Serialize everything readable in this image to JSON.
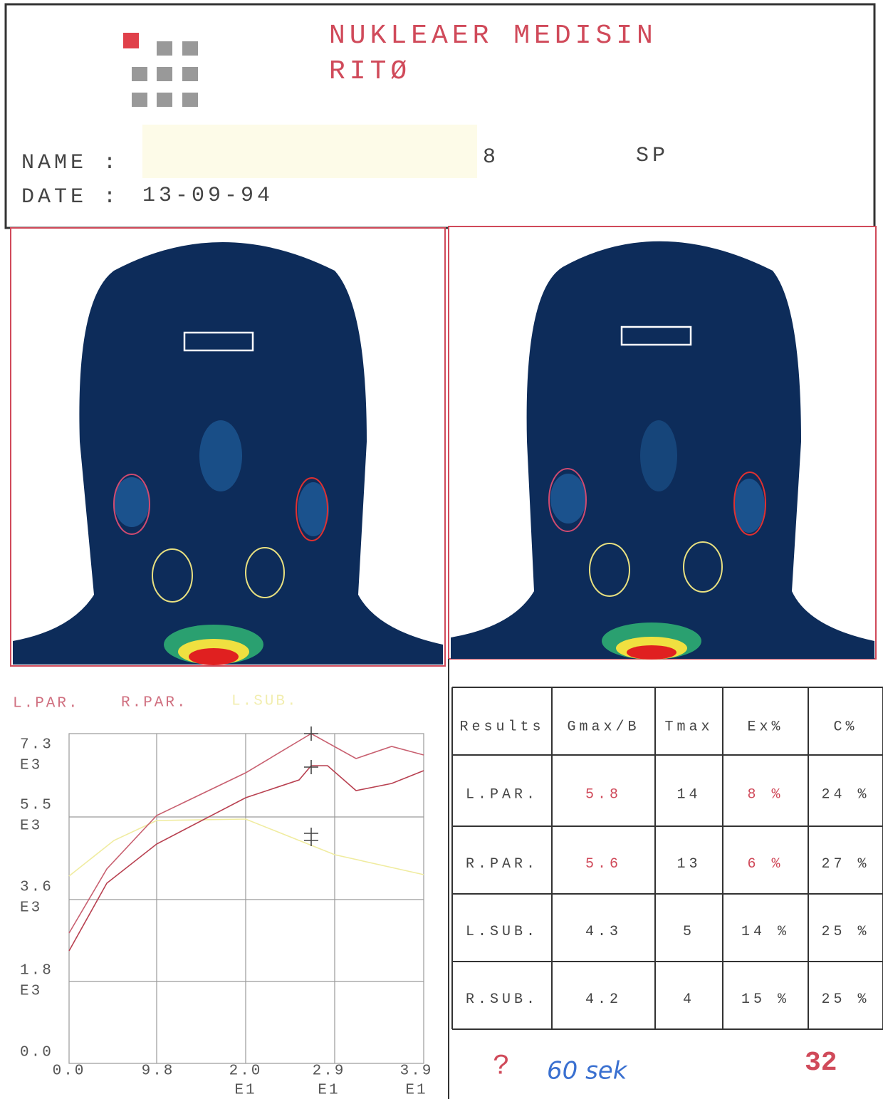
{
  "header": {
    "title": "NUKLEAER MEDISIN",
    "subtitle": "RITØ",
    "name_label": "NAME :",
    "code": "8",
    "initials": "SP",
    "date_label": "DATE :",
    "date": "13-09-94"
  },
  "plot": {
    "legend": [
      "L.PAR.",
      "R.PAR.",
      "L.SUB."
    ],
    "yticks": [
      {
        "label": "7.3",
        "unit": "E3"
      },
      {
        "label": "5.5",
        "unit": "E3"
      },
      {
        "label": "3.6",
        "unit": "E3"
      },
      {
        "label": "1.8",
        "unit": "E3"
      },
      {
        "label": "0.0"
      }
    ],
    "xticks": [
      {
        "label": "0.0"
      },
      {
        "label": "9.8"
      },
      {
        "label": "2.0",
        "unit": "E1"
      },
      {
        "label": "2.9",
        "unit": "E1"
      },
      {
        "label": "3.9",
        "unit": "E1"
      }
    ]
  },
  "table": {
    "header": [
      "Results",
      "Gmax/B",
      "Tmax",
      "Ex%",
      "C%"
    ],
    "rows": [
      [
        "L.PAR.",
        "5.8",
        "14",
        "8 %",
        "24 %"
      ],
      [
        "R.PAR.",
        "5.6",
        "13",
        "6 %",
        "27 %"
      ],
      [
        "L.SUB.",
        "4.3",
        "5",
        "14 %",
        "25 %"
      ],
      [
        "R.SUB.",
        "4.2",
        "4",
        "15 %",
        "25 %"
      ]
    ]
  },
  "footer": {
    "mark": "?",
    "note": "60 sek",
    "number": "32"
  }
}
